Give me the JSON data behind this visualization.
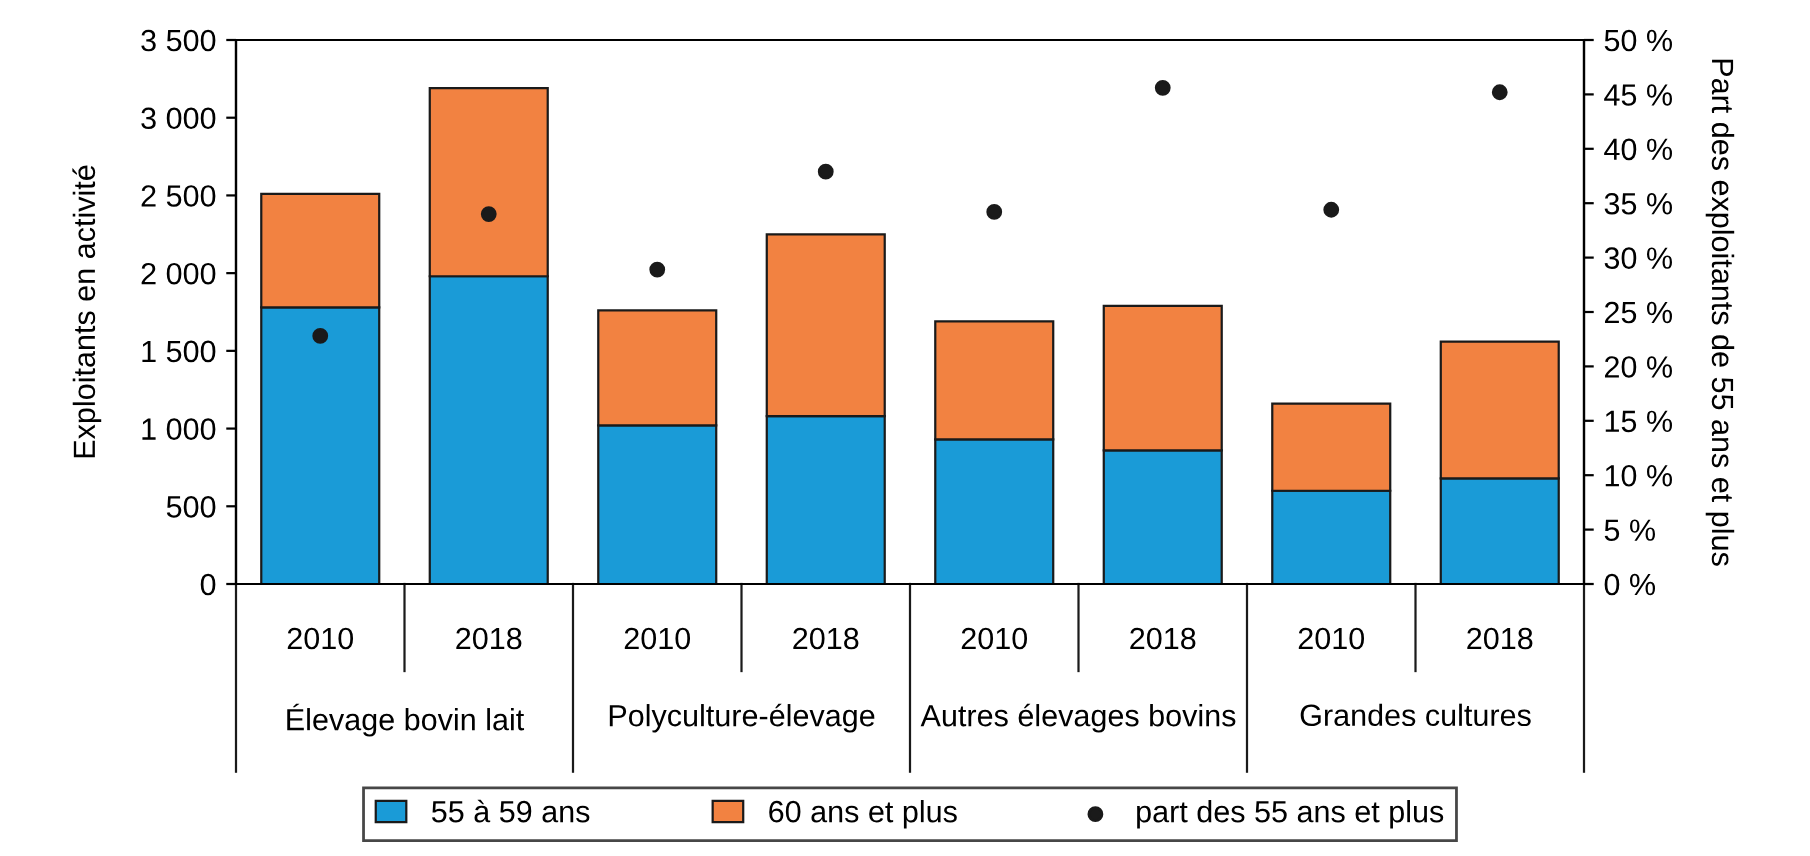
{
  "chart_data": {
    "type": "bar",
    "stacked": true,
    "categories": [
      "2010",
      "2018",
      "2010",
      "2018",
      "2010",
      "2018",
      "2010",
      "2018"
    ],
    "annotations": [
      "Élevage bovin lait",
      "Polyculture-élevage",
      "Autres élevages bovins",
      "Grandes cultures"
    ],
    "ylabel": "Exploitants en activité",
    "y2label": "Part des exploitants de 55 ans et plus",
    "series": [
      {
        "name": "55 à 59 ans",
        "color": "#1a9bd7",
        "values": [
          1780,
          1980,
          1020,
          1080,
          930,
          860,
          600,
          680
        ]
      },
      {
        "name": "60 ans et plus",
        "color": "#f28241",
        "values": [
          730,
          1210,
          740,
          1170,
          760,
          930,
          560,
          880
        ]
      },
      {
        "name": "part des 55 ans et plus",
        "type": "scatter",
        "axis": "y2",
        "color": "#1a1a1a",
        "marker": "circle",
        "values": [
          22.8,
          34.0,
          28.9,
          37.9,
          34.2,
          45.6,
          34.4,
          45.2
        ]
      }
    ],
    "ylim": [
      0,
      3500
    ],
    "yticks": [
      0,
      500,
      {
        "value": 1000,
        "label": "1 000"
      },
      {
        "value": 1500,
        "label": "1 500"
      },
      {
        "value": 2000,
        "label": "2 000"
      },
      {
        "value": 2500,
        "label": "2 500"
      },
      {
        "value": 3000,
        "label": "3 000"
      },
      {
        "value": 3500,
        "label": "3 500"
      }
    ],
    "y2lim": [
      0,
      50
    ],
    "y2ticks": [
      {
        "value": 0,
        "label": "0 %"
      },
      {
        "value": 5,
        "label": "5 %"
      },
      {
        "value": 10,
        "label": "10 %"
      },
      {
        "value": 15,
        "label": "15 %"
      },
      {
        "value": 20,
        "label": "20 %"
      },
      {
        "value": 25,
        "label": "25 %"
      },
      {
        "value": 30,
        "label": "30 %"
      },
      {
        "value": 35,
        "label": "35 %"
      },
      {
        "value": 40,
        "label": "40 %"
      },
      {
        "value": 45,
        "label": "45 %"
      },
      {
        "value": 50,
        "label": "50 %"
      }
    ],
    "legend": "bottom",
    "grid": false
  }
}
